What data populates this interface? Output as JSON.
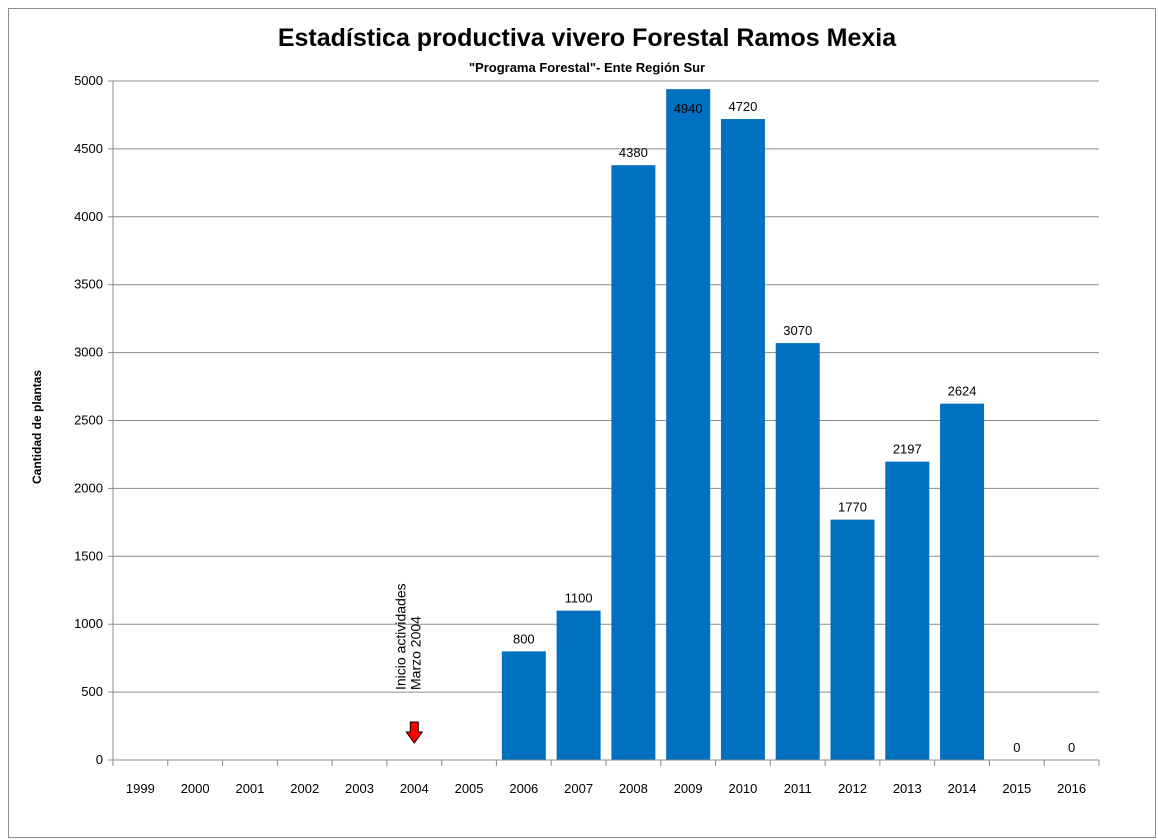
{
  "chart_data": {
    "type": "bar",
    "title": "Estadística productiva vivero Forestal Ramos Mexia",
    "subtitle": "\"Programa Forestal\"- Ente Región Sur",
    "ylabel": "Cantidad de plantas",
    "xlabel": "",
    "ylim": [
      0,
      5000
    ],
    "yticks": [
      "0",
      "500",
      "1000",
      "1500",
      "2000",
      "2500",
      "3000",
      "3500",
      "4000",
      "4500",
      "5000"
    ],
    "grid": true,
    "categories": [
      "1999",
      "2000",
      "2001",
      "2002",
      "2003",
      "2004",
      "2005",
      "2006",
      "2007",
      "2008",
      "2009",
      "2010",
      "2011",
      "2012",
      "2013",
      "2014",
      "2015",
      "2016"
    ],
    "values": [
      null,
      null,
      null,
      null,
      null,
      null,
      null,
      800,
      1100,
      4380,
      4940,
      4720,
      3070,
      1770,
      2197,
      2624,
      0,
      0
    ],
    "data_labels": [
      "",
      "",
      "",
      "",
      "",
      "",
      "",
      "800",
      "1100",
      "4380",
      "4940",
      "4720",
      "3070",
      "1770",
      "2197",
      "2624",
      "0",
      "0"
    ],
    "bar_color": "#0070C0",
    "annotation": {
      "category": "2004",
      "lines": [
        "Inicio actividades",
        "Marzo 2004"
      ],
      "arrow_color": "#FF0000"
    }
  }
}
